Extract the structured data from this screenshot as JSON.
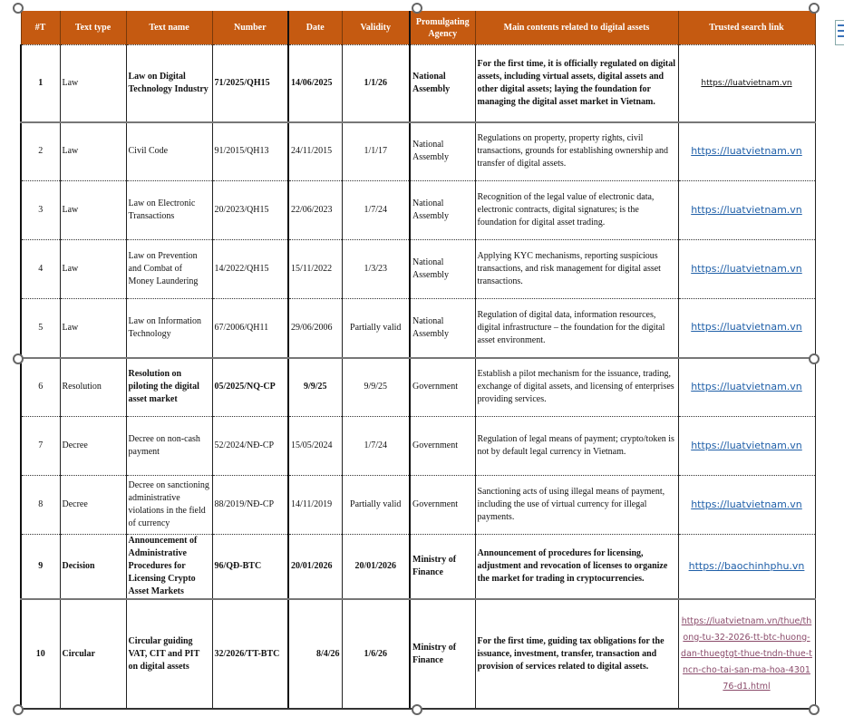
{
  "headers": [
    "#T",
    "Text type",
    "Text name",
    "Number",
    "Date",
    "Validity",
    "Promulgating Agency",
    "Main contents related to digital assets",
    "Trusted search link"
  ],
  "rows": [
    {
      "no": "1",
      "type": "Law",
      "name": "Law on Digital Technology Industry",
      "number": "71/2025/QH15",
      "date": "14/06/2025",
      "validity": "1/1/26",
      "agency": "National Assembly",
      "contents": "For the first time, it is officially regulated on digital assets, including virtual assets, digital assets and other digital assets; laying the foundation for managing the digital asset market in Vietnam.",
      "link": "https://luatvietnam.vn"
    },
    {
      "no": "2",
      "type": "Law",
      "name": "Civil Code",
      "number": "91/2015/QH13",
      "date": "24/11/2015",
      "validity": "1/1/17",
      "agency": "National Assembly",
      "contents": "Regulations on property, property rights, civil transactions, grounds for establishing ownership and transfer of digital assets.",
      "link": "https://luatvietnam.vn"
    },
    {
      "no": "3",
      "type": "Law",
      "name": "Law on Electronic Transactions",
      "number": "20/2023/QH15",
      "date": "22/06/2023",
      "validity": "1/7/24",
      "agency": "National Assembly",
      "contents": "Recognition of the legal value of electronic data, electronic contracts, digital signatures; is the foundation for digital asset trading.",
      "link": "https://luatvietnam.vn"
    },
    {
      "no": "4",
      "type": "Law",
      "name": "Law on Prevention and Combat of Money Laundering",
      "number": "14/2022/QH15",
      "date": "15/11/2022",
      "validity": "1/3/23",
      "agency": "National Assembly",
      "contents": "Applying KYC mechanisms, reporting suspicious transactions, and risk management for digital asset transactions.",
      "link": "https://luatvietnam.vn"
    },
    {
      "no": "5",
      "type": "Law",
      "name": "Law on Information Technology",
      "number": "67/2006/QH11",
      "date": "29/06/2006",
      "validity": "Partially valid",
      "agency": "National Assembly",
      "contents": "Regulation of digital data, information resources, digital infrastructure – the foundation for the digital asset environment.",
      "link": "https://luatvietnam.vn"
    },
    {
      "no": "6",
      "type": "Resolution",
      "name": "Resolution on piloting the digital asset market",
      "number": "05/2025/NQ-CP",
      "date": "9/9/25",
      "validity": "9/9/25",
      "agency": "Government",
      "contents": "Establish a pilot mechanism for the issuance, trading, exchange of digital assets, and licensing of enterprises providing services.",
      "link": "https://luatvietnam.vn"
    },
    {
      "no": "7",
      "type": "Decree",
      "name": "Decree on non-cash payment",
      "number": "52/2024/NĐ-CP",
      "date": "15/05/2024",
      "validity": "1/7/24",
      "agency": "Government",
      "contents": "Regulation of legal means of payment; crypto/token is not by default legal currency in Vietnam.",
      "link": "https://luatvietnam.vn"
    },
    {
      "no": "8",
      "type": "Decree",
      "name": "Decree on sanctioning administrative violations in the field of currency",
      "number": "88/2019/NĐ-CP",
      "date": "14/11/2019",
      "validity": "Partially valid",
      "agency": "Government",
      "contents": "Sanctioning acts of using illegal means of payment, including the use of virtual currency for illegal payments.",
      "link": "https://luatvietnam.vn"
    },
    {
      "no": "9",
      "type": "Decision",
      "name": "Announcement of Administrative Procedures for Licensing Crypto Asset Markets",
      "number": "96/QĐ-BTC",
      "date": "20/01/2026",
      "validity": "20/01/2026",
      "agency": "Ministry of Finance",
      "contents": "Announcement of procedures for licensing, adjustment and revocation of licenses to organize the market for trading in cryptocurrencies.",
      "link": "https://baochinhphu.vn"
    },
    {
      "no": "10",
      "type": "Circular",
      "name": "Circular guiding VAT, CIT and PIT on digital assets",
      "number": "32/2026/TT-BTC",
      "date": "8/4/26",
      "validity": "1/6/26",
      "agency": "Ministry of Finance",
      "contents": "For the first time, guiding tax obligations for the issuance, investment, transfer, transaction and provision of services related to digital assets.",
      "link": "https://luatvietnam.vn/thue/thong-tu-32-2026-tt-btc-huong-dan-thuegtgt-thue-tndn-thue-tncn-cho-tai-san-ma-hoa-430176-d1.html"
    }
  ],
  "colors": {
    "header_bg": "#c55a11",
    "link": "#1f5fa8",
    "visited_link": "#8a4a6a"
  }
}
